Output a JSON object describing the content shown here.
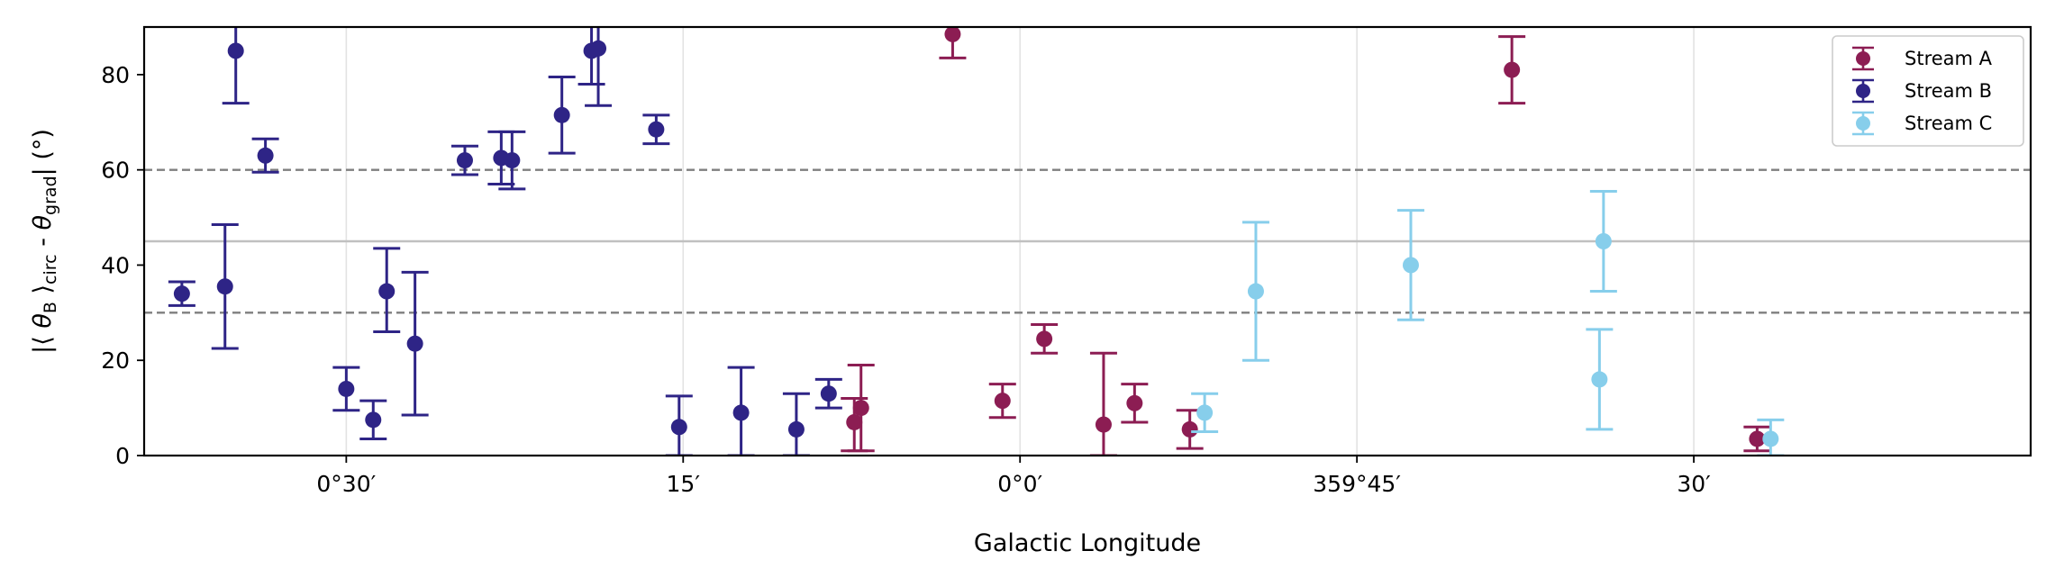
{
  "chart_data": {
    "type": "scatter",
    "title": "",
    "xlabel": "Galactic Longitude",
    "ylabel": "|⟨ θ_B ⟩_circ - θ_grad| (°)",
    "xlim": [
      0.65,
      -0.75
    ],
    "ylim": [
      0,
      90
    ],
    "x_unit": "degrees (Galactic longitude)",
    "x_ticks": [
      {
        "value": 0.5,
        "label": "0°30′"
      },
      {
        "value": 0.25,
        "label": "15′"
      },
      {
        "value": 0.0,
        "label": "0°0′"
      },
      {
        "value": -0.25,
        "label": "359°45′"
      },
      {
        "value": -0.5,
        "label": "30′"
      }
    ],
    "y_ticks": [
      0,
      20,
      40,
      60,
      80
    ],
    "grid": "vertical",
    "reference_lines": [
      {
        "y": 30,
        "style": "dashed",
        "color": "#7f7f7f"
      },
      {
        "y": 45,
        "style": "solid",
        "color": "#c0c0c0"
      },
      {
        "y": 60,
        "style": "dashed",
        "color": "#7f7f7f"
      }
    ],
    "legend_position": "top-right",
    "series": [
      {
        "name": "Stream A",
        "color": "#8c1d53",
        "points": [
          {
            "x": 0.123,
            "y": 7,
            "err_low": 6,
            "err_high": 5
          },
          {
            "x": 0.118,
            "y": 10,
            "err_low": 9,
            "err_high": 9
          },
          {
            "x": 0.05,
            "y": 88.5,
            "err_low": 5,
            "err_high": 3
          },
          {
            "x": 0.013,
            "y": 11.5,
            "err_low": 3.5,
            "err_high": 3.5
          },
          {
            "x": -0.018,
            "y": 24.5,
            "err_low": 3,
            "err_high": 3
          },
          {
            "x": -0.062,
            "y": 6.5,
            "err_low": 6.5,
            "err_high": 15
          },
          {
            "x": -0.085,
            "y": 11,
            "err_low": 4,
            "err_high": 4
          },
          {
            "x": -0.126,
            "y": 5.5,
            "err_low": 4,
            "err_high": 4
          },
          {
            "x": -0.365,
            "y": 81,
            "err_low": 7,
            "err_high": 7
          },
          {
            "x": -0.547,
            "y": 3.5,
            "err_low": 2.5,
            "err_high": 2.5
          }
        ]
      },
      {
        "name": "Stream B",
        "color": "#2e2486",
        "points": [
          {
            "x": 0.622,
            "y": 34,
            "err_low": 2.5,
            "err_high": 2.5
          },
          {
            "x": 0.59,
            "y": 35.5,
            "err_low": 13,
            "err_high": 13
          },
          {
            "x": 0.582,
            "y": 85,
            "err_low": 11,
            "err_high": 11
          },
          {
            "x": 0.56,
            "y": 63,
            "err_low": 3.5,
            "err_high": 3.5
          },
          {
            "x": 0.5,
            "y": 14,
            "err_low": 4.5,
            "err_high": 4.5
          },
          {
            "x": 0.48,
            "y": 7.5,
            "err_low": 4,
            "err_high": 4
          },
          {
            "x": 0.47,
            "y": 34.5,
            "err_low": 8.5,
            "err_high": 9
          },
          {
            "x": 0.449,
            "y": 23.5,
            "err_low": 15,
            "err_high": 15
          },
          {
            "x": 0.412,
            "y": 62,
            "err_low": 3,
            "err_high": 3
          },
          {
            "x": 0.385,
            "y": 62.5,
            "err_low": 5.5,
            "err_high": 5.5
          },
          {
            "x": 0.377,
            "y": 62,
            "err_low": 6,
            "err_high": 6
          },
          {
            "x": 0.34,
            "y": 71.5,
            "err_low": 8,
            "err_high": 8
          },
          {
            "x": 0.318,
            "y": 85,
            "err_low": 7,
            "err_high": 7
          },
          {
            "x": 0.313,
            "y": 85.5,
            "err_low": 12,
            "err_high": 12
          },
          {
            "x": 0.27,
            "y": 68.5,
            "err_low": 3,
            "err_high": 3
          },
          {
            "x": 0.253,
            "y": 6,
            "err_low": 6,
            "err_high": 6.5
          },
          {
            "x": 0.207,
            "y": 9,
            "err_low": 9,
            "err_high": 9.5
          },
          {
            "x": 0.166,
            "y": 5.5,
            "err_low": 5.5,
            "err_high": 7.5
          },
          {
            "x": 0.142,
            "y": 13,
            "err_low": 3,
            "err_high": 3
          }
        ]
      },
      {
        "name": "Stream C",
        "color": "#87ceeb",
        "points": [
          {
            "x": -0.137,
            "y": 9,
            "err_low": 4,
            "err_high": 4
          },
          {
            "x": -0.175,
            "y": 34.5,
            "err_low": 14.5,
            "err_high": 14.5
          },
          {
            "x": -0.29,
            "y": 40,
            "err_low": 11.5,
            "err_high": 11.5
          },
          {
            "x": -0.43,
            "y": 16,
            "err_low": 10.5,
            "err_high": 10.5
          },
          {
            "x": -0.433,
            "y": 45,
            "err_low": 10.5,
            "err_high": 10.5
          },
          {
            "x": -0.557,
            "y": 3.5,
            "err_low": 3.5,
            "err_high": 4
          }
        ]
      }
    ]
  }
}
